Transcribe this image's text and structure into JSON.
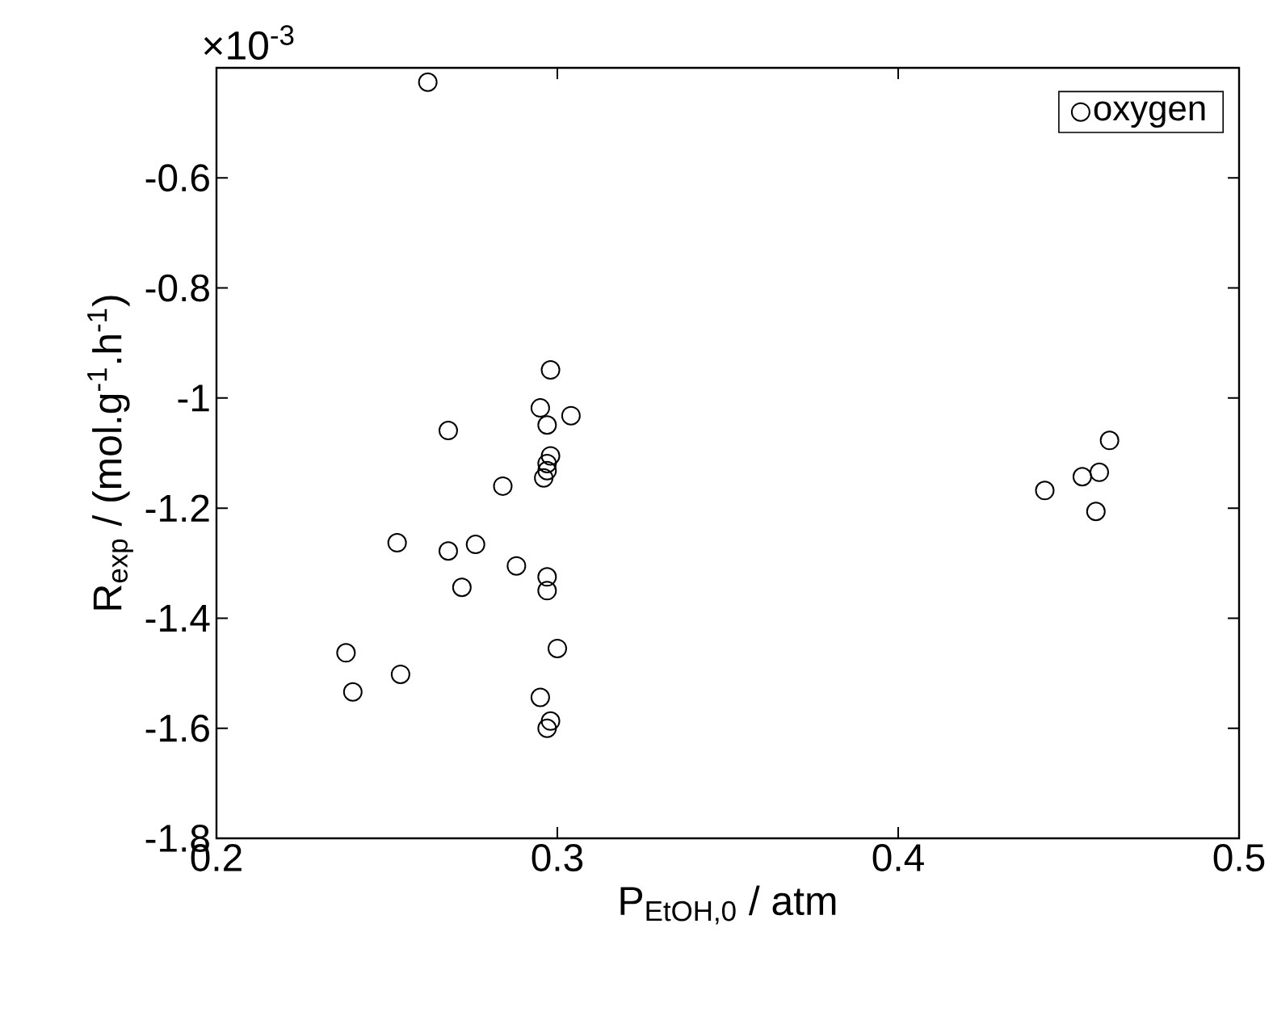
{
  "chart_data": {
    "type": "scatter",
    "xlabel": "P$_{EtOH,0}$ / atm",
    "ylabel": "R$_{exp}$ / (mol.g$^{-1}$.h$^{-1}$)",
    "annotations": [
      "×10$^{-3}$"
    ],
    "xlim": [
      0.2,
      0.5
    ],
    "xticks": [
      0.2,
      0.3,
      0.4,
      0.5
    ],
    "ylim": [
      -1.8,
      -0.4
    ],
    "yticks": [
      -1.8,
      -1.6,
      -1.4,
      -1.2,
      -1,
      -0.8,
      -0.6
    ],
    "marker": "circle",
    "legend": "top right",
    "grid": false,
    "series": [
      {
        "name": "oxygen",
        "color": "#000000",
        "x": [
          0.262,
          0.298,
          0.295,
          0.304,
          0.297,
          0.268,
          0.298,
          0.297,
          0.297,
          0.296,
          0.284,
          0.253,
          0.276,
          0.268,
          0.288,
          0.297,
          0.272,
          0.297,
          0.3,
          0.238,
          0.254,
          0.24,
          0.295,
          0.298,
          0.297,
          0.462,
          0.459,
          0.454,
          0.443,
          0.458
        ],
        "values": [
          -0.426,
          -0.949,
          -1.018,
          -1.032,
          -1.049,
          -1.059,
          -1.105,
          -1.119,
          -1.132,
          -1.145,
          -1.16,
          -1.263,
          -1.266,
          -1.278,
          -1.305,
          -1.325,
          -1.344,
          -1.35,
          -1.455,
          -1.463,
          -1.502,
          -1.534,
          -1.544,
          -1.587,
          -1.6,
          -1.077,
          -1.135,
          -1.143,
          -1.168,
          -1.206
        ]
      }
    ]
  }
}
